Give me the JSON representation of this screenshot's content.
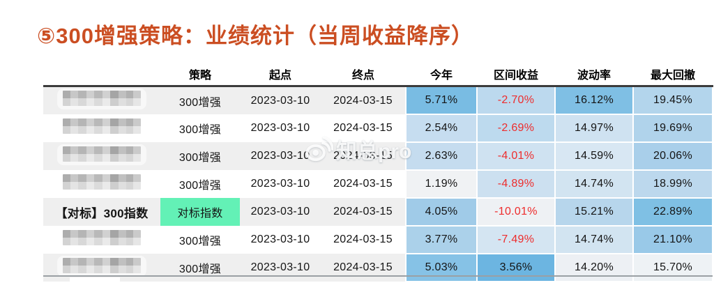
{
  "title": "⑤300增强策略：业绩统计（当周收益降序）",
  "title_color": "#cb4e22",
  "watermark": {
    "text": "知总pro",
    "icon": "weibo-icon"
  },
  "colors": {
    "negative_text": "#ee2c2c",
    "benchmark_green": "#63f1b6",
    "stripe_gray": "#efefef",
    "header_rule": "#3b3b3b",
    "bottom_rule": "#9aa0a4"
  },
  "table": {
    "columns": [
      "",
      "策略",
      "起点",
      "终点",
      "今年",
      "区间收益",
      "波动率",
      "最大回撤"
    ],
    "rows": [
      {
        "name": "",
        "name_masked": true,
        "strategy": "300增强",
        "strategy_bg": "",
        "start": "2023-03-10",
        "end": "2024-03-15",
        "ytd": "5.71%",
        "interval": "-2.70%",
        "vol": "16.12%",
        "mdd": "19.45%",
        "cell_colors": {
          "ytd": "#79bce3",
          "interval": "#bcd9ee",
          "vol": "#7fbfe4",
          "mdd": "#b3d5ec"
        }
      },
      {
        "name": "",
        "name_masked": true,
        "strategy": "300增强",
        "strategy_bg": "",
        "start": "2023-03-10",
        "end": "2024-03-15",
        "ytd": "2.54%",
        "interval": "-2.69%",
        "vol": "14.97%",
        "mdd": "19.69%",
        "cell_colors": {
          "ytd": "#c6ddf0",
          "interval": "#bddaee",
          "vol": "#cfe2f1",
          "mdd": "#b0d3eb"
        }
      },
      {
        "name": "",
        "name_masked": true,
        "strategy": "300增强",
        "strategy_bg": "",
        "start": "2023-03-10",
        "end": "2024-03-15",
        "ytd": "2.63%",
        "interval": "-4.01%",
        "vol": "14.59%",
        "mdd": "20.06%",
        "cell_colors": {
          "ytd": "#c5dcef",
          "interval": "#cfe2f1",
          "vol": "#d8e7f3",
          "mdd": "#a9cfea"
        }
      },
      {
        "name": "",
        "name_masked": true,
        "strategy": "300增强",
        "strategy_bg": "",
        "start": "2023-03-10",
        "end": "2024-03-15",
        "ytd": "1.19%",
        "interval": "-4.89%",
        "vol": "14.74%",
        "mdd": "18.99%",
        "cell_colors": {
          "ytd": "#f0f2f4",
          "interval": "#cce0f0",
          "vol": "#d2e4f1",
          "mdd": "#bcd8ed"
        }
      },
      {
        "name": "【对标】300指数",
        "name_masked": false,
        "strategy": "对标指数",
        "strategy_bg": "#63f1b6",
        "start": "2023-03-10",
        "end": "2024-03-15",
        "ytd": "4.05%",
        "interval": "-10.01%",
        "vol": "15.21%",
        "mdd": "22.89%",
        "cell_colors": {
          "ytd": "#a0cbe8",
          "interval": "#eef1f4",
          "vol": "#b7d6ec",
          "mdd": "#7fc0e4"
        }
      },
      {
        "name": "",
        "name_masked": true,
        "strategy": "300增强",
        "strategy_bg": "",
        "start": "2023-03-10",
        "end": "2024-03-15",
        "ytd": "3.77%",
        "interval": "-7.49%",
        "vol": "14.74%",
        "mdd": "21.10%",
        "cell_colors": {
          "ytd": "#abd1ea",
          "interval": "#d4e5f2",
          "vol": "#d2e4f1",
          "mdd": "#99c9e8"
        }
      },
      {
        "name": "",
        "name_masked": true,
        "strategy": "300增强",
        "strategy_bg": "",
        "start": "2023-03-10",
        "end": "2024-03-15",
        "ytd": "5.03%",
        "interval": "3.56%",
        "vol": "14.20%",
        "mdd": "15.70%",
        "cell_colors": {
          "ytd": "#86c2e6",
          "interval": "#6cb5e1",
          "vol": "#edf0f4",
          "mdd": "#eef2f5"
        }
      }
    ]
  }
}
